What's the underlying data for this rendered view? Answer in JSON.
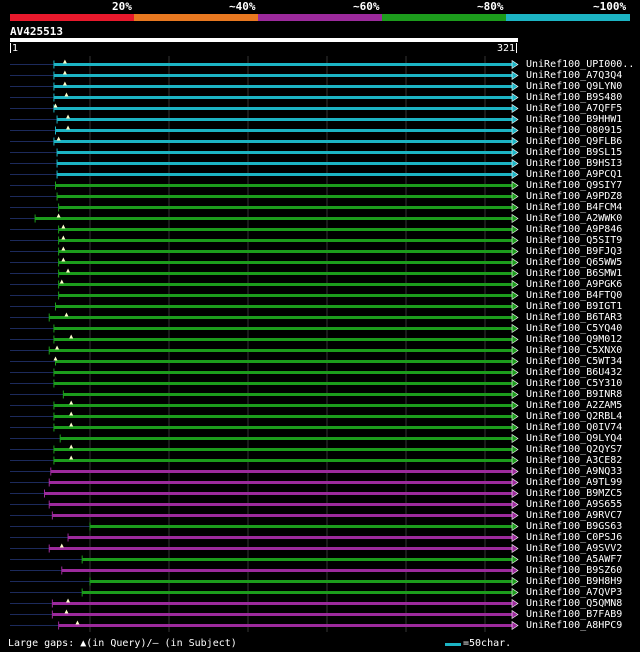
{
  "legend": {
    "labels": [
      "20%",
      "~40%",
      "~60%",
      "~80%",
      "~100%"
    ],
    "colors": [
      "#e8192c",
      "#e87820",
      "#9c2a9c",
      "#1c9c1c",
      "#1cb4c4"
    ]
  },
  "query": {
    "id": "AV425513",
    "start": "1",
    "end": "321",
    "length": 321
  },
  "hits": [
    {
      "label": "UniRef100_UPI000..",
      "start": 29,
      "end": 321,
      "color": "#1cb4c4",
      "marker": 36,
      "aligned": [
        29,
        321
      ]
    },
    {
      "label": "UniRef100_A7Q3Q4",
      "start": 29,
      "end": 321,
      "color": "#1cb4c4",
      "marker": 36,
      "aligned": [
        29,
        321
      ]
    },
    {
      "label": "UniRef100_Q9LYN0",
      "start": 29,
      "end": 321,
      "color": "#1cb4c4",
      "marker": 36,
      "aligned": [
        29,
        321
      ]
    },
    {
      "label": "UniRef100_B9S480",
      "start": 29,
      "end": 321,
      "color": "#1cb4c4",
      "marker": 37,
      "aligned": [
        29,
        321
      ]
    },
    {
      "label": "UniRef100_A7QFF5",
      "start": 29,
      "end": 321,
      "color": "#1cb4c4",
      "marker": 30,
      "aligned": [
        29,
        321
      ]
    },
    {
      "label": "UniRef100_B9HHW1",
      "start": 31,
      "end": 321,
      "color": "#1cb4c4",
      "marker": 38,
      "aligned": [
        31,
        321
      ]
    },
    {
      "label": "UniRef100_O80915",
      "start": 30,
      "end": 321,
      "color": "#1cb4c4",
      "marker": 38,
      "aligned": [
        30,
        321
      ]
    },
    {
      "label": "UniRef100_Q9FLB6",
      "start": 29,
      "end": 321,
      "color": "#1cb4c4",
      "marker": 32,
      "aligned": [
        29,
        321
      ]
    },
    {
      "label": "UniRef100_B9SL15",
      "start": 31,
      "end": 321,
      "color": "#1cb4c4",
      "marker": null,
      "aligned": [
        31,
        321
      ]
    },
    {
      "label": "UniRef100_B9HSI3",
      "start": 31,
      "end": 321,
      "color": "#1cb4c4",
      "marker": null,
      "aligned": [
        31,
        321
      ]
    },
    {
      "label": "UniRef100_A9PCQ1",
      "start": 31,
      "end": 321,
      "color": "#1cb4c4",
      "marker": null,
      "aligned": [
        31,
        321
      ]
    },
    {
      "label": "UniRef100_Q9SIY7",
      "start": 30,
      "end": 321,
      "color": "#1c9c1c",
      "marker": null,
      "aligned": [
        30,
        321
      ]
    },
    {
      "label": "UniRef100_A9PDZ8",
      "start": 31,
      "end": 321,
      "color": "#1c9c1c",
      "marker": null,
      "aligned": [
        31,
        321
      ]
    },
    {
      "label": "UniRef100_B4FCM4",
      "start": 32,
      "end": 321,
      "color": "#1c9c1c",
      "marker": null,
      "aligned": [
        32,
        321
      ]
    },
    {
      "label": "UniRef100_A2WWK0",
      "start": 17,
      "end": 321,
      "color": "#1c9c1c",
      "marker": 32,
      "aligned": [
        17,
        321
      ]
    },
    {
      "label": "UniRef100_A9P846",
      "start": 32,
      "end": 321,
      "color": "#1c9c1c",
      "marker": 35,
      "aligned": [
        32,
        321
      ]
    },
    {
      "label": "UniRef100_Q5SIT9",
      "start": 32,
      "end": 321,
      "color": "#1c9c1c",
      "marker": 35,
      "aligned": [
        32,
        321
      ]
    },
    {
      "label": "UniRef100_B9FJQ3",
      "start": 32,
      "end": 321,
      "color": "#1c9c1c",
      "marker": 35,
      "aligned": [
        32,
        321
      ]
    },
    {
      "label": "UniRef100_Q65WW5",
      "start": 32,
      "end": 321,
      "color": "#1c9c1c",
      "marker": 35,
      "aligned": [
        32,
        321
      ]
    },
    {
      "label": "UniRef100_B6SMW1",
      "start": 32,
      "end": 321,
      "color": "#1c9c1c",
      "marker": 38,
      "aligned": [
        32,
        321
      ]
    },
    {
      "label": "UniRef100_A9PGK6",
      "start": 32,
      "end": 321,
      "color": "#1c9c1c",
      "marker": 34,
      "aligned": [
        32,
        321
      ]
    },
    {
      "label": "UniRef100_B4FTQ0",
      "start": 32,
      "end": 321,
      "color": "#1c9c1c",
      "marker": null,
      "aligned": [
        32,
        321
      ]
    },
    {
      "label": "UniRef100_B9IGT1",
      "start": 30,
      "end": 321,
      "color": "#1c9c1c",
      "marker": null,
      "aligned": [
        30,
        321
      ]
    },
    {
      "label": "UniRef100_B6TAR3",
      "start": 26,
      "end": 321,
      "color": "#1c9c1c",
      "marker": 37,
      "aligned": [
        26,
        321
      ]
    },
    {
      "label": "UniRef100_C5YQ40",
      "start": 29,
      "end": 321,
      "color": "#1c9c1c",
      "marker": null,
      "aligned": [
        29,
        321
      ]
    },
    {
      "label": "UniRef100_Q9M012",
      "start": 29,
      "end": 321,
      "color": "#1c9c1c",
      "marker": 40,
      "aligned": [
        29,
        321
      ]
    },
    {
      "label": "UniRef100_C5XNX0",
      "start": 26,
      "end": 321,
      "color": "#1c9c1c",
      "marker": 31,
      "aligned": [
        26,
        321
      ]
    },
    {
      "label": "UniRef100_C5WT34",
      "start": 30,
      "end": 321,
      "color": "#1c9c1c",
      "marker": 30,
      "aligned": [
        30,
        321
      ]
    },
    {
      "label": "UniRef100_B6U432",
      "start": 29,
      "end": 321,
      "color": "#1c9c1c",
      "marker": null,
      "aligned": [
        29,
        321
      ]
    },
    {
      "label": "UniRef100_C5Y310",
      "start": 29,
      "end": 321,
      "color": "#1c9c1c",
      "marker": null,
      "aligned": [
        29,
        321
      ]
    },
    {
      "label": "UniRef100_B9INR8",
      "start": 35,
      "end": 321,
      "color": "#1c9c1c",
      "marker": null,
      "aligned": [
        35,
        321
      ]
    },
    {
      "label": "UniRef100_A2ZAM5",
      "start": 29,
      "end": 321,
      "color": "#1c9c1c",
      "marker": 40,
      "aligned": [
        29,
        321
      ]
    },
    {
      "label": "UniRef100_Q2RBL4",
      "start": 29,
      "end": 321,
      "color": "#1c9c1c",
      "marker": 40,
      "aligned": [
        29,
        321
      ]
    },
    {
      "label": "UniRef100_Q0IV74",
      "start": 29,
      "end": 321,
      "color": "#1c9c1c",
      "marker": 40,
      "aligned": [
        29,
        321
      ]
    },
    {
      "label": "UniRef100_Q9LYQ4",
      "start": 33,
      "end": 321,
      "color": "#1c9c1c",
      "marker": null,
      "aligned": [
        33,
        321
      ]
    },
    {
      "label": "UniRef100_Q2QYS7",
      "start": 29,
      "end": 321,
      "color": "#1c9c1c",
      "marker": 40,
      "aligned": [
        29,
        321
      ]
    },
    {
      "label": "UniRef100_A3CE82",
      "start": 29,
      "end": 321,
      "color": "#1c9c1c",
      "marker": 40,
      "aligned": [
        29,
        321
      ]
    },
    {
      "label": "UniRef100_A9NQ33",
      "start": 27,
      "end": 321,
      "color": "#9c2a9c",
      "marker": null,
      "aligned": [
        27,
        321
      ]
    },
    {
      "label": "UniRef100_A9TL99",
      "start": 26,
      "end": 321,
      "color": "#9c2a9c",
      "marker": null,
      "aligned": [
        26,
        321
      ]
    },
    {
      "label": "UniRef100_B9MZC5",
      "start": 23,
      "end": 321,
      "color": "#9c2a9c",
      "marker": null,
      "aligned": [
        23,
        321
      ]
    },
    {
      "label": "UniRef100_A9S655",
      "start": 26,
      "end": 321,
      "color": "#9c2a9c",
      "marker": null,
      "aligned": [
        26,
        321
      ]
    },
    {
      "label": "UniRef100_A9RVC7",
      "start": 28,
      "end": 321,
      "color": "#9c2a9c",
      "marker": null,
      "aligned": [
        28,
        321
      ]
    },
    {
      "label": "UniRef100_B9GS63",
      "start": 52,
      "end": 321,
      "color": "#1c9c1c",
      "marker": null,
      "aligned": [
        52,
        321
      ]
    },
    {
      "label": "UniRef100_C0PSJ6",
      "start": 38,
      "end": 321,
      "color": "#9c2a9c",
      "marker": null,
      "aligned": [
        38,
        321
      ]
    },
    {
      "label": "UniRef100_A9SVV2",
      "start": 26,
      "end": 321,
      "color": "#9c2a9c",
      "marker": 34,
      "aligned": [
        26,
        321
      ]
    },
    {
      "label": "UniRef100_A5AWF7",
      "start": 47,
      "end": 321,
      "color": "#1c9c1c",
      "marker": null,
      "aligned": [
        47,
        321
      ]
    },
    {
      "label": "UniRef100_B9SZ60",
      "start": 34,
      "end": 321,
      "color": "#9c2a9c",
      "marker": null,
      "aligned": [
        34,
        321
      ]
    },
    {
      "label": "UniRef100_B9H8H9",
      "start": 52,
      "end": 321,
      "color": "#1c9c1c",
      "marker": null,
      "aligned": [
        52,
        321
      ]
    },
    {
      "label": "UniRef100_A7QVP3",
      "start": 47,
      "end": 321,
      "color": "#1c9c1c",
      "marker": null,
      "aligned": [
        47,
        321
      ]
    },
    {
      "label": "UniRef100_Q5QMN8",
      "start": 28,
      "end": 321,
      "color": "#9c2a9c",
      "marker": 38,
      "aligned": [
        28,
        321
      ]
    },
    {
      "label": "UniRef100_B7FAB9",
      "start": 28,
      "end": 321,
      "color": "#9c2a9c",
      "marker": 37,
      "aligned": [
        28,
        321
      ]
    },
    {
      "label": "UniRef100_A8HPC9",
      "start": 32,
      "end": 321,
      "color": "#9c2a9c",
      "marker": 44,
      "aligned": [
        32,
        321
      ]
    }
  ],
  "footer": {
    "text": "Large gaps: ▲(in Query)/— (in Subject)",
    "scale_label": "=50char."
  }
}
